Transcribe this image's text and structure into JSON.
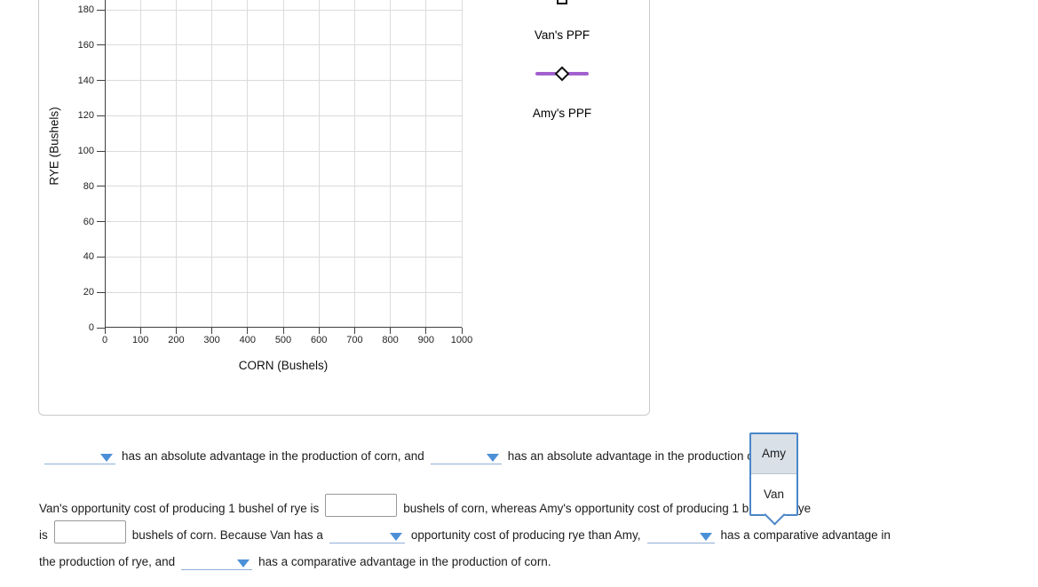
{
  "panel": {
    "chart": {
      "y_axis_label": "RYE (Bushels)",
      "x_axis_label": "CORN (Bushels)",
      "y_ticks": [
        0,
        20,
        40,
        60,
        80,
        100,
        120,
        140,
        160,
        180
      ],
      "x_ticks": [
        0,
        100,
        200,
        300,
        400,
        500,
        600,
        700,
        800,
        900,
        1000
      ],
      "legend": {
        "van_label": "Van's PPF",
        "amy_label": "Amy's PPF"
      }
    }
  },
  "question": {
    "line1": {
      "text_a": "has an absolute advantage in the production of corn, and",
      "text_b": "has an absolute advantage in the production of rye."
    },
    "line2": {
      "text_a": "Van's opportunity cost of producing 1 bushel of rye is",
      "text_b": "bushels of corn, whereas Amy's opportunity cost of producing 1 bushel of rye"
    },
    "line3": {
      "text_a": "is",
      "text_b": "bushels of corn. Because Van has a",
      "text_c": "opportunity cost of producing rye than Amy,",
      "text_d": "has a comparative advantage in"
    },
    "line4": {
      "text_a": "the production of rye, and",
      "text_b": "has a comparative advantage in the production of corn."
    },
    "inputs": {
      "van_cost_value": "",
      "amy_cost_value": ""
    }
  },
  "dropdown_popup": {
    "options": [
      "Amy",
      "Van"
    ],
    "highlighted": "Amy"
  },
  "colors": {
    "dropdown_accent": "#4a86c8",
    "chevron_blue": "#4b90d6",
    "blank_underline": "#8fafd6",
    "ppf_line_purple": "#a261cf",
    "grid": "#dbdbdb"
  }
}
